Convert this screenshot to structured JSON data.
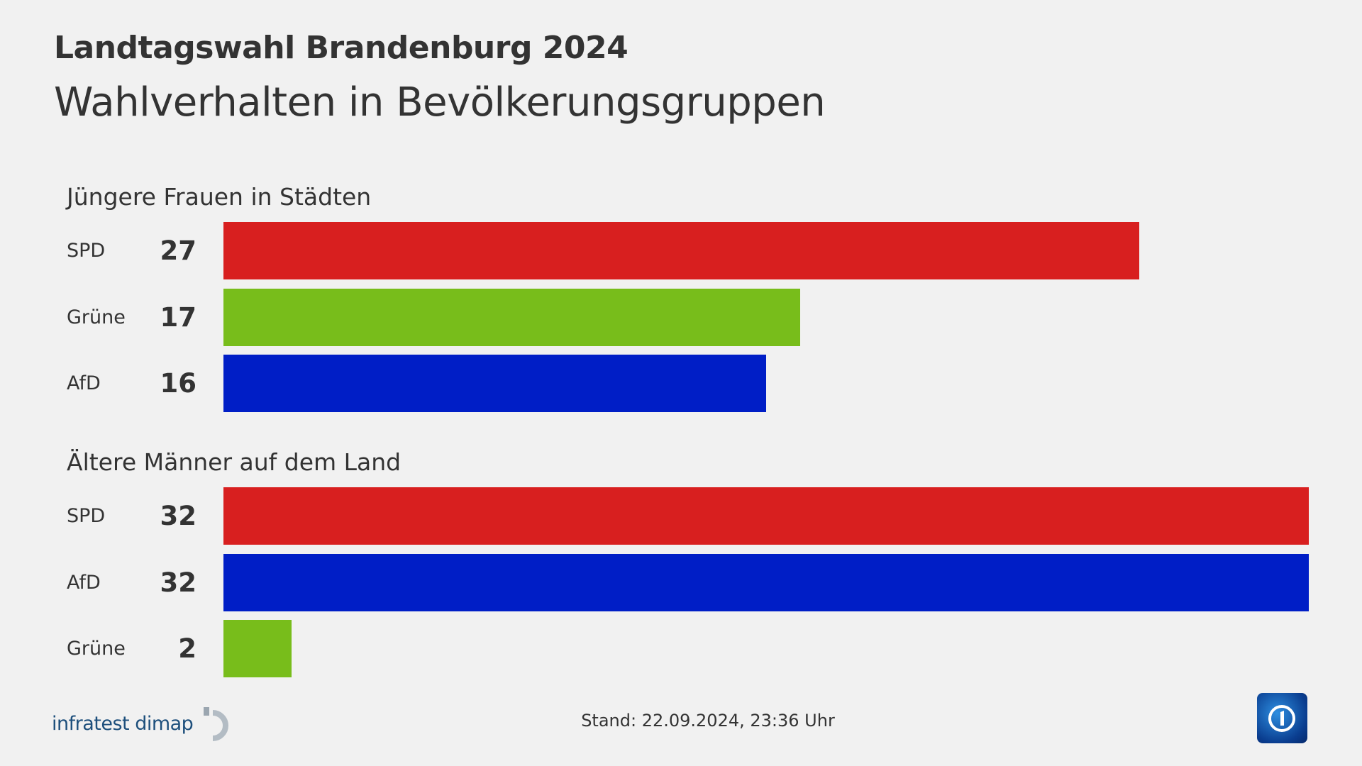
{
  "header": {
    "title": "Landtagswahl Brandenburg 2024",
    "subtitle": "Wahlverhalten in Bevölkerungsgruppen"
  },
  "chart_data": [
    {
      "type": "bar",
      "title": "Jüngere Frauen in Städten",
      "categories": [
        "SPD",
        "Grüne",
        "AfD"
      ],
      "values": [
        27,
        17,
        16
      ],
      "colors": [
        "#d81f1f",
        "#78bd1b",
        "#001ec6"
      ],
      "xlim": [
        0,
        32
      ]
    },
    {
      "type": "bar",
      "title": "Ältere Männer auf dem Land",
      "categories": [
        "SPD",
        "AfD",
        "Grüne"
      ],
      "values": [
        32,
        32,
        2
      ],
      "colors": [
        "#d81f1f",
        "#001ec6",
        "#78bd1b"
      ],
      "xlim": [
        0,
        32
      ]
    }
  ],
  "footer": {
    "source": "infratest dimap",
    "stand": "Stand:  22.09.2024, 23:36 Uhr",
    "logo": "ard-das-erste-logo"
  }
}
